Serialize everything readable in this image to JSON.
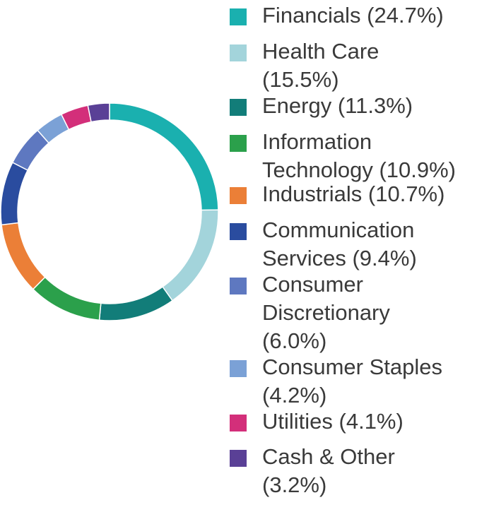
{
  "chart_data": {
    "type": "pie",
    "title": "",
    "donut": true,
    "legend_position": "right",
    "categories": [
      "Financials",
      "Health Care",
      "Energy",
      "Information Technology",
      "Industrials",
      "Communication Services",
      "Consumer Discretionary",
      "Consumer Staples",
      "Utilities",
      "Cash & Other"
    ],
    "values": [
      24.7,
      15.5,
      11.3,
      10.9,
      10.7,
      9.4,
      6.0,
      4.2,
      4.1,
      3.2
    ],
    "colors": [
      "#1AB0AF",
      "#A3D4DB",
      "#127D79",
      "#2BA04B",
      "#EB7F37",
      "#2A4C9F",
      "#5E78C0",
      "#7BA1D6",
      "#D32F7A",
      "#5A4096"
    ],
    "legend_labels": [
      "Financials (24.7%)",
      "Health Care\n(15.5%)",
      "Energy (11.3%)",
      "Information\nTechnology (10.9%)",
      "Industrials (10.7%)",
      "Communication\nServices (9.4%)",
      "Consumer\nDiscretionary\n(6.0%)",
      "Consumer Staples\n(4.2%)",
      "Utilities (4.1%)",
      "Cash & Other\n(3.2%)"
    ]
  }
}
